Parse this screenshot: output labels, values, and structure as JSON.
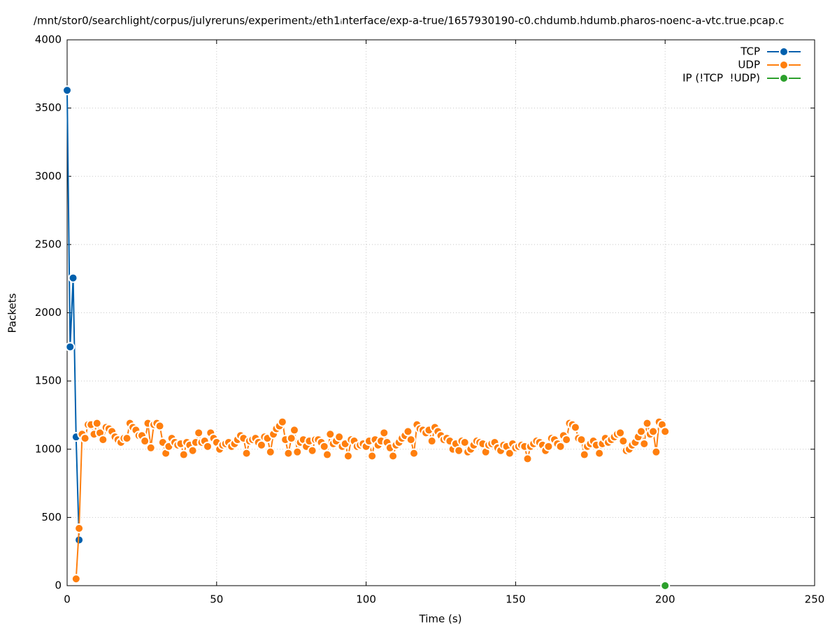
{
  "chart_data": {
    "type": "line",
    "title": "/mnt/stor0/searchlight/corpus/julyreruns/experiment₂/eth1ᵢnterface/exp-a-true/1657930190-c0.chdumb.hdumb.pharos-noenc-a-vtc.true.pcap.c",
    "x_label": "Time (s)",
    "y_label": "Packets",
    "xlim": [
      0,
      250
    ],
    "xticks": [
      0,
      50,
      100,
      150,
      200,
      250
    ],
    "ylim": [
      0,
      4000
    ],
    "yticks": [
      0,
      500,
      1000,
      1500,
      2000,
      2500,
      3000,
      3500,
      4000
    ],
    "grid": true,
    "legend": "top-right",
    "series": [
      {
        "name": "TCP",
        "color": "#0060ad",
        "x": [
          0,
          1,
          2,
          3,
          4
        ],
        "values": [
          3630,
          1750,
          2255,
          1090,
          335
        ]
      },
      {
        "name": "UDP",
        "color": "#ff7f0e",
        "x": [
          3,
          4,
          5,
          6,
          7,
          8,
          9,
          10,
          11,
          12,
          13,
          14,
          15,
          16,
          17,
          18,
          19,
          20,
          21,
          22,
          23,
          24,
          25,
          26,
          27,
          28,
          29,
          30,
          31,
          32,
          33,
          34,
          35,
          36,
          37,
          38,
          39,
          40,
          41,
          42,
          43,
          44,
          45,
          46,
          47,
          48,
          49,
          50,
          51,
          52,
          53,
          54,
          55,
          56,
          57,
          58,
          59,
          60,
          61,
          62,
          63,
          64,
          65,
          66,
          67,
          68,
          69,
          70,
          71,
          72,
          73,
          74,
          75,
          76,
          77,
          78,
          79,
          80,
          81,
          82,
          83,
          84,
          85,
          86,
          87,
          88,
          89,
          90,
          91,
          92,
          93,
          94,
          95,
          96,
          97,
          98,
          99,
          100,
          101,
          102,
          103,
          104,
          105,
          106,
          107,
          108,
          109,
          110,
          111,
          112,
          113,
          114,
          115,
          116,
          117,
          118,
          119,
          120,
          121,
          122,
          123,
          124,
          125,
          126,
          127,
          128,
          129,
          130,
          131,
          132,
          133,
          134,
          135,
          136,
          137,
          138,
          139,
          140,
          141,
          142,
          143,
          144,
          145,
          146,
          147,
          148,
          149,
          150,
          151,
          152,
          153,
          154,
          155,
          156,
          157,
          158,
          159,
          160,
          161,
          162,
          163,
          164,
          165,
          166,
          167,
          168,
          169,
          170,
          171,
          172,
          173,
          174,
          175,
          176,
          177,
          178,
          179,
          180,
          181,
          182,
          183,
          184,
          185,
          186,
          187,
          188,
          189,
          190,
          191,
          192,
          193,
          194,
          195,
          196,
          197,
          198,
          199,
          200
        ],
        "values": [
          50,
          420,
          1110,
          1080,
          1180,
          1180,
          1110,
          1190,
          1120,
          1070,
          1160,
          1150,
          1130,
          1090,
          1070,
          1050,
          1080,
          1080,
          1190,
          1160,
          1140,
          1100,
          1100,
          1060,
          1190,
          1010,
          1180,
          1190,
          1170,
          1050,
          970,
          1020,
          1080,
          1050,
          1030,
          1040,
          960,
          1050,
          1030,
          990,
          1050,
          1120,
          1050,
          1060,
          1020,
          1120,
          1080,
          1050,
          1000,
          1030,
          1040,
          1050,
          1020,
          1040,
          1070,
          1100,
          1080,
          970,
          1060,
          1070,
          1080,
          1050,
          1030,
          1090,
          1080,
          980,
          1110,
          1150,
          1170,
          1200,
          1070,
          970,
          1080,
          1140,
          980,
          1050,
          1070,
          1020,
          1060,
          990,
          1070,
          1070,
          1050,
          1020,
          960,
          1110,
          1040,
          1060,
          1090,
          1020,
          1040,
          950,
          1070,
          1060,
          1020,
          1030,
          1040,
          1020,
          1060,
          950,
          1070,
          1030,
          1060,
          1120,
          1050,
          1010,
          950,
          1030,
          1050,
          1080,
          1100,
          1130,
          1070,
          970,
          1180,
          1150,
          1140,
          1120,
          1140,
          1060,
          1160,
          1130,
          1100,
          1070,
          1080,
          1060,
          1000,
          1040,
          990,
          1060,
          1050,
          980,
          1000,
          1030,
          1060,
          1050,
          1040,
          980,
          1030,
          1040,
          1050,
          1010,
          990,
          1030,
          1020,
          970,
          1040,
          1010,
          1020,
          1030,
          1020,
          930,
          1020,
          1040,
          1060,
          1050,
          1030,
          990,
          1020,
          1080,
          1070,
          1040,
          1020,
          1100,
          1070,
          1190,
          1180,
          1160,
          1080,
          1070,
          960,
          1020,
          1040,
          1060,
          1030,
          970,
          1040,
          1080,
          1050,
          1070,
          1090,
          1110,
          1120,
          1060,
          990,
          1000,
          1030,
          1050,
          1090,
          1130,
          1040,
          1190,
          1110,
          1130,
          980,
          1200,
          1180,
          1130
        ]
      },
      {
        "name": "IP (!TCP  !UDP)",
        "color": "#2ca02c",
        "x": [
          200
        ],
        "values": [
          0
        ]
      }
    ]
  }
}
